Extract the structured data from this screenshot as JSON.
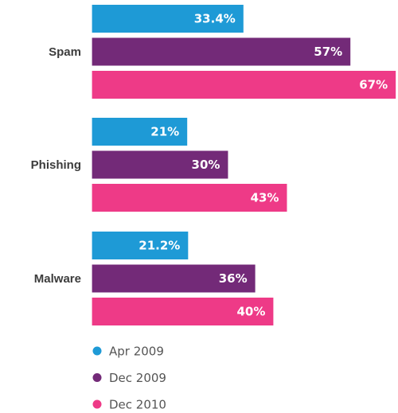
{
  "chart_data": {
    "type": "bar",
    "orientation": "horizontal",
    "categories": [
      "Spam",
      "Phishing",
      "Malware"
    ],
    "series": [
      {
        "name": "Apr 2009",
        "values": [
          33.4,
          21,
          21.2
        ],
        "labels": [
          "33.4%",
          "21%",
          "21.2%"
        ],
        "color": "#1e9ad6"
      },
      {
        "name": "Dec 2009",
        "values": [
          57,
          30,
          36
        ],
        "labels": [
          "57%",
          "30%",
          "36%"
        ],
        "color": "#732a78"
      },
      {
        "name": "Dec 2010",
        "values": [
          67,
          43,
          40
        ],
        "labels": [
          "67%",
          "43%",
          "40%"
        ],
        "color": "#ee3a87"
      }
    ],
    "xlim": [
      -20.3,
      67.5
    ],
    "legend_position": "bottom-left",
    "grid": false
  }
}
